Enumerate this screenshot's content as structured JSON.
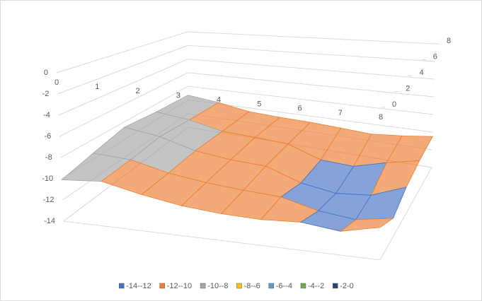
{
  "chart_data": {
    "type": "surface",
    "categories": [
      "0",
      "1",
      "2",
      "3",
      "4",
      "5",
      "6",
      "7",
      "8"
    ],
    "zticks": [
      0,
      2,
      4,
      6,
      8
    ],
    "zlim": [
      0,
      8
    ],
    "ylim": [
      -14,
      0
    ],
    "yticks": [
      -14,
      -12,
      -10,
      -8,
      -6,
      -4,
      -2,
      0
    ],
    "values": [
      [
        -10.1,
        -9.8,
        -10.6,
        -11.2,
        -11.5,
        -11.6,
        -11.4,
        -11.8,
        -11.0
      ],
      [
        -9.4,
        -9.6,
        -10.5,
        -11.0,
        -11.3,
        -11.5,
        -12.4,
        -12.8,
        -12.2
      ],
      [
        -8.6,
        -9.2,
        -10.3,
        -10.8,
        -11.0,
        -12.3,
        -12.9,
        -12.6,
        -11.3
      ],
      [
        -9.0,
        -9.5,
        -10.4,
        -10.6,
        -10.9,
        -12.2,
        -12.4,
        -11.5,
        -10.8
      ],
      [
        -9.3,
        -9.8,
        -10.5,
        -10.7,
        -10.8,
        -11.0,
        -11.2,
        -10.9,
        -10.5
      ]
    ],
    "series": [
      {
        "name": "-14--12",
        "color": "#4472c4"
      },
      {
        "name": "-12--10",
        "color": "#ed7d31"
      },
      {
        "name": "-10--8",
        "color": "#a5a5a5"
      },
      {
        "name": "-8--6",
        "color": "#ffc000"
      },
      {
        "name": "-6--4",
        "color": "#5b9bd5"
      },
      {
        "name": "-4--2",
        "color": "#70ad47"
      },
      {
        "name": "-2-0",
        "color": "#264478"
      }
    ]
  }
}
